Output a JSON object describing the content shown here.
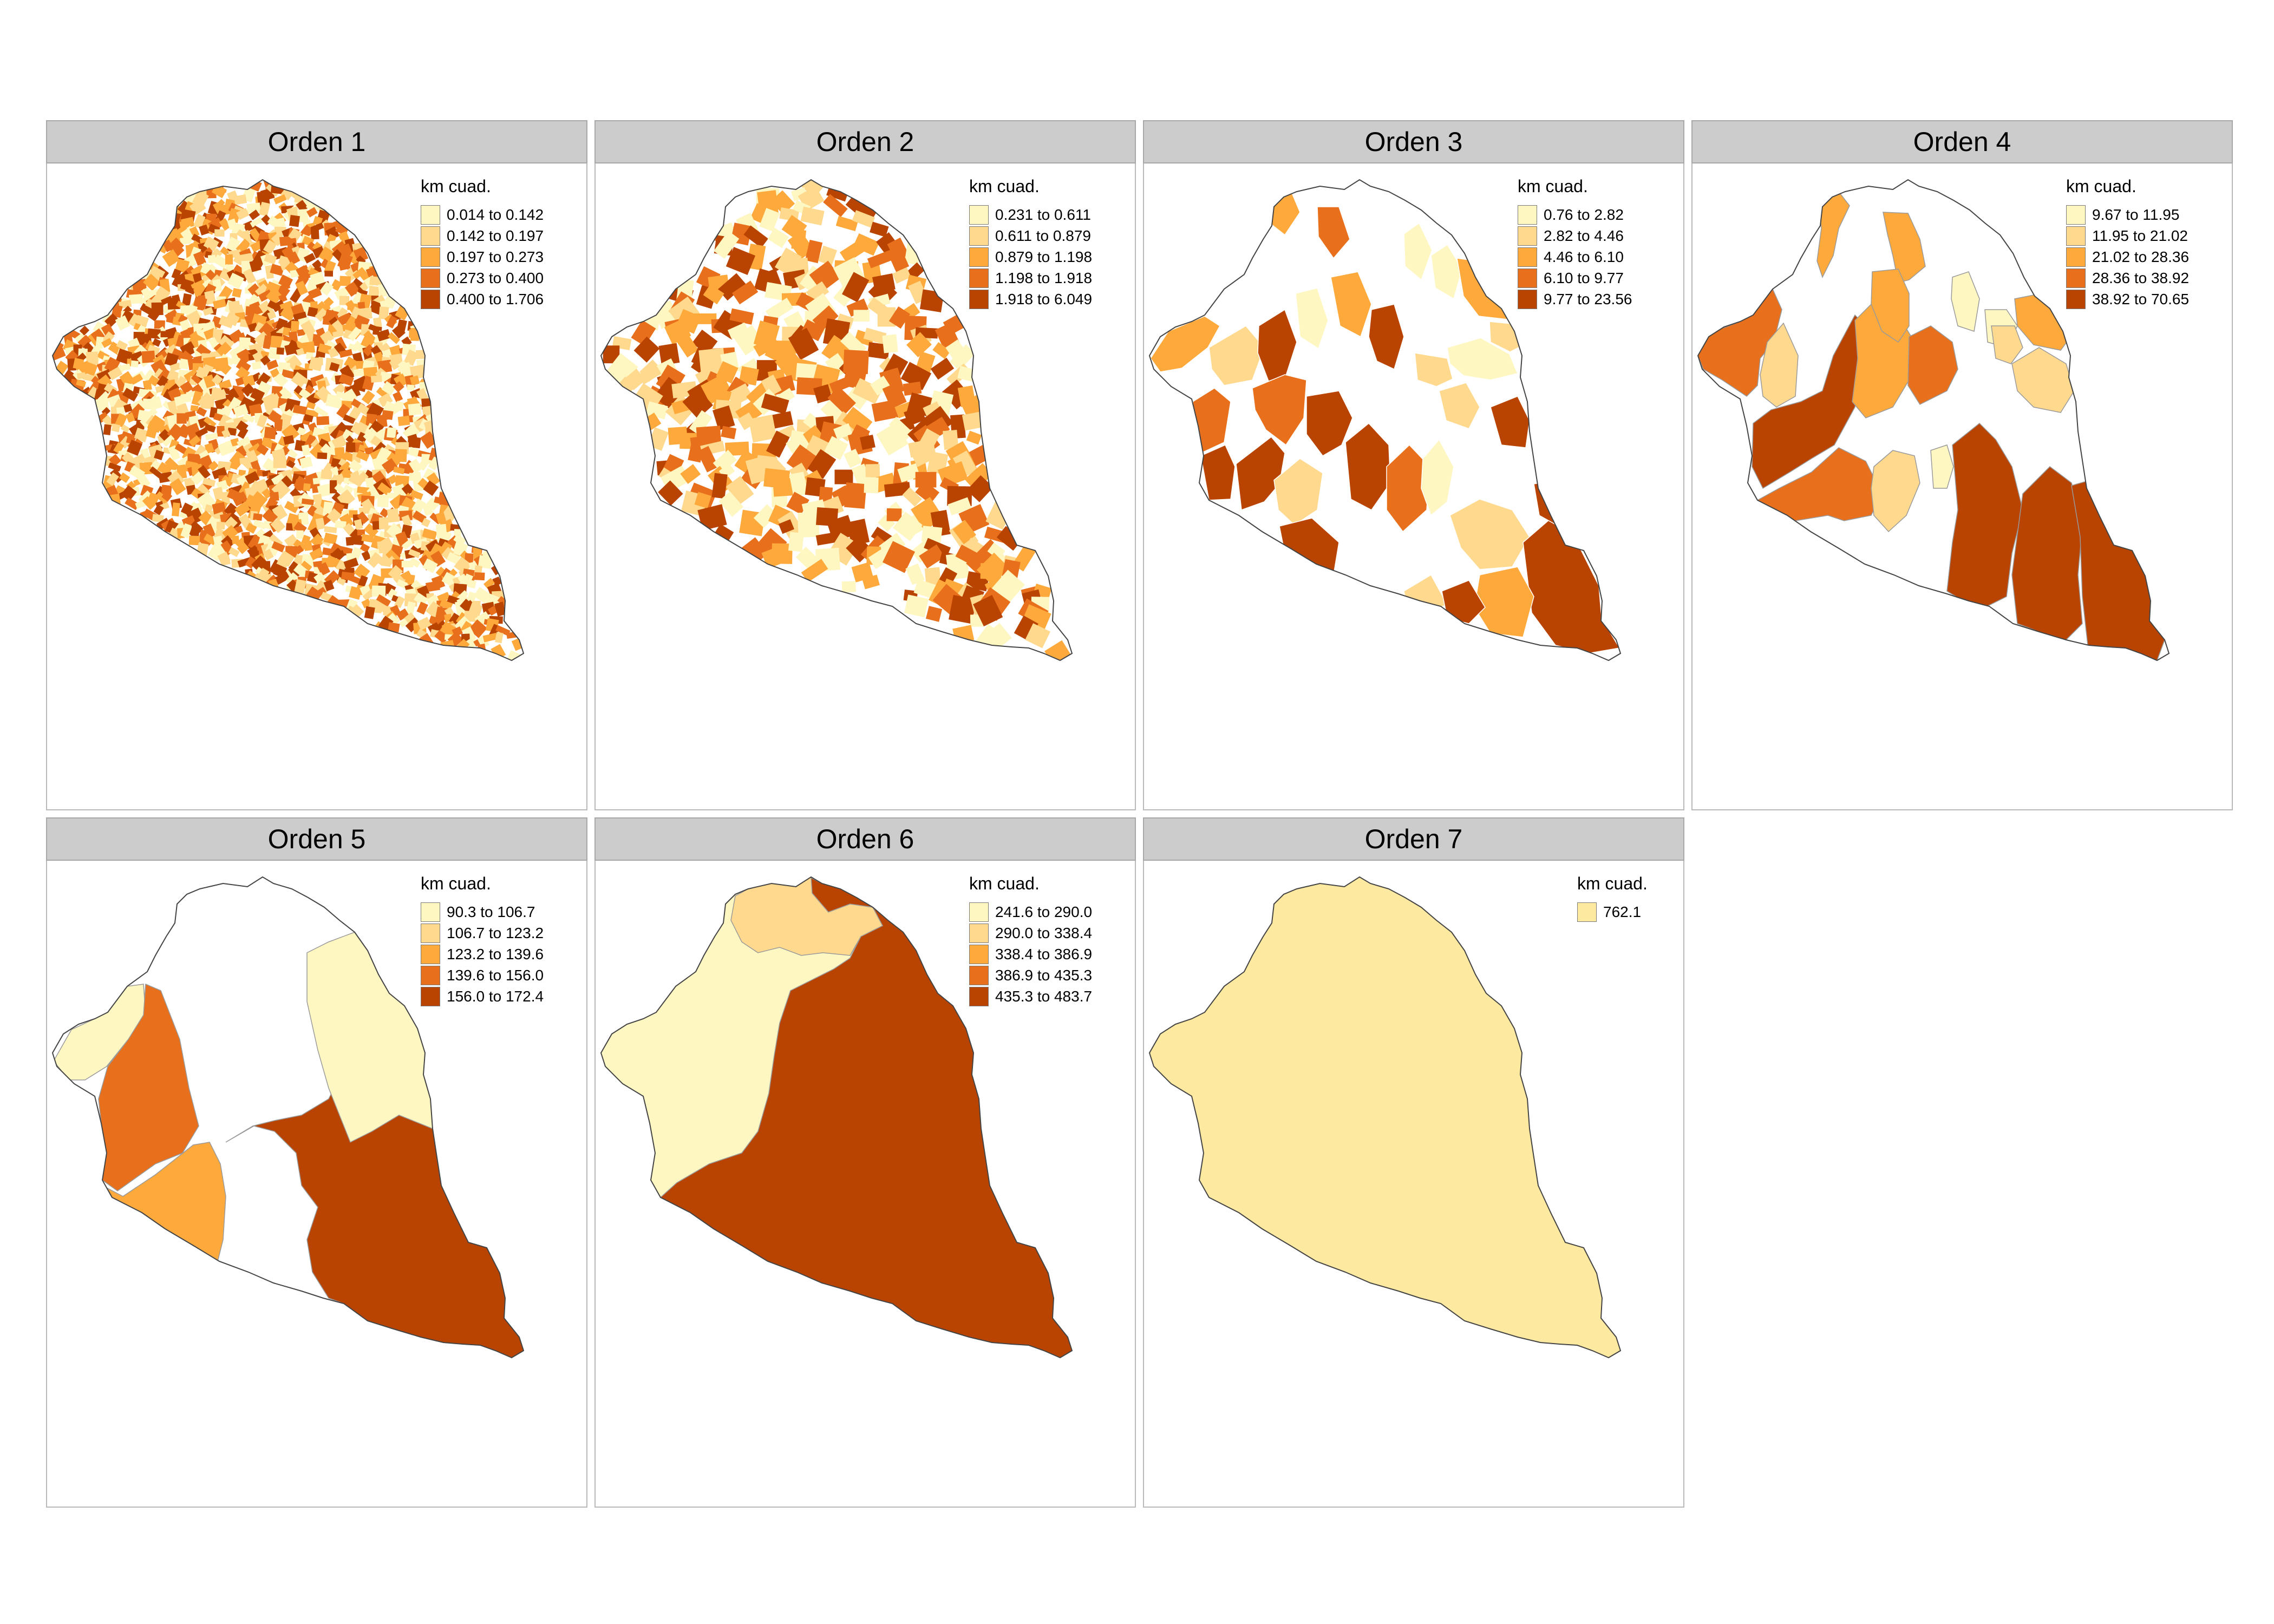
{
  "figure": {
    "legend_title": "km cuad.",
    "panels": [
      {
        "title": "Orden 1",
        "fill": "mosaic",
        "legend": [
          {
            "label": "0.014 to 0.142",
            "color": "#fff7c2"
          },
          {
            "label": "0.142 to 0.197",
            "color": "#fed98e"
          },
          {
            "label": "0.197 to 0.273",
            "color": "#fea93c"
          },
          {
            "label": "0.273 to 0.400",
            "color": "#e8701c"
          },
          {
            "label": "0.400 to 1.706",
            "color": "#b94300"
          }
        ]
      },
      {
        "title": "Orden 2",
        "fill": "mosaic",
        "legend": [
          {
            "label": "0.231 to 0.611",
            "color": "#fff7c2"
          },
          {
            "label": "0.611 to 0.879",
            "color": "#fed98e"
          },
          {
            "label": "0.879 to 1.198",
            "color": "#fea93c"
          },
          {
            "label": "1.198 to 1.918",
            "color": "#e8701c"
          },
          {
            "label": "1.918 to 6.049",
            "color": "#b94300"
          }
        ]
      },
      {
        "title": "Orden 3",
        "fill": "mosaic",
        "legend": [
          {
            "label": "0.76 to 2.82",
            "color": "#fff7c2"
          },
          {
            "label": "2.82 to 4.46",
            "color": "#fed98e"
          },
          {
            "label": "4.46 to 6.10",
            "color": "#fea93c"
          },
          {
            "label": "6.10 to 9.77",
            "color": "#e8701c"
          },
          {
            "label": "9.77 to 23.56",
            "color": "#b94300"
          }
        ]
      },
      {
        "title": "Orden 4",
        "fill": "regions",
        "legend": [
          {
            "label": "9.67 to 11.95",
            "color": "#fff7c2"
          },
          {
            "label": "11.95 to 21.02",
            "color": "#fed98e"
          },
          {
            "label": "21.02 to 28.36",
            "color": "#fea93c"
          },
          {
            "label": "28.36 to 38.92",
            "color": "#e8701c"
          },
          {
            "label": "38.92 to 70.65",
            "color": "#b94300"
          }
        ]
      },
      {
        "title": "Orden 5",
        "fill": "regions",
        "legend": [
          {
            "label": "90.3 to 106.7",
            "color": "#fff7c2"
          },
          {
            "label": "106.7 to 123.2",
            "color": "#fed98e"
          },
          {
            "label": "123.2 to 139.6",
            "color": "#fea93c"
          },
          {
            "label": "139.6 to 156.0",
            "color": "#e8701c"
          },
          {
            "label": "156.0 to 172.4",
            "color": "#b94300"
          }
        ]
      },
      {
        "title": "Orden 6",
        "fill": "regions",
        "legend": [
          {
            "label": "241.6 to 290.0",
            "color": "#fff7c2"
          },
          {
            "label": "290.0 to 338.4",
            "color": "#fed98e"
          },
          {
            "label": "338.4 to 386.9",
            "color": "#fea93c"
          },
          {
            "label": "386.9 to 435.3",
            "color": "#e8701c"
          },
          {
            "label": "435.3 to 483.7",
            "color": "#b94300"
          }
        ]
      },
      {
        "title": "Orden 7",
        "fill": "solid",
        "legend": [
          {
            "label": "762.1",
            "color": "#fde9a0"
          }
        ]
      }
    ]
  }
}
